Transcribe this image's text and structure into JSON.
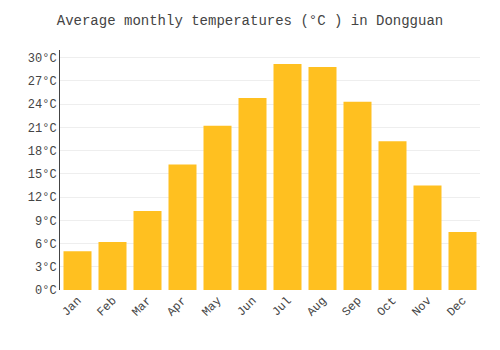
{
  "chart_data": {
    "type": "bar",
    "title": "Average monthly temperatures (°C ) in Dongguan",
    "categories": [
      "Jan",
      "Feb",
      "Mar",
      "Apr",
      "May",
      "Jun",
      "Jul",
      "Aug",
      "Sep",
      "Oct",
      "Nov",
      "Dec"
    ],
    "values": [
      5,
      6.2,
      10.2,
      16.2,
      21.2,
      24.8,
      29.2,
      28.8,
      24.3,
      19.2,
      13.5,
      7.5
    ],
    "color": "#FFC020",
    "ylim": [
      0,
      31
    ],
    "yticks": [
      {
        "value": 0,
        "label": "0°C"
      },
      {
        "value": 3,
        "label": "3°C"
      },
      {
        "value": 6,
        "label": "6°C"
      },
      {
        "value": 9,
        "label": "9°C"
      },
      {
        "value": 12,
        "label": "12°C"
      },
      {
        "value": 15,
        "label": "15°C"
      },
      {
        "value": 18,
        "label": "18°C"
      },
      {
        "value": 21,
        "label": "21°C"
      },
      {
        "value": 24,
        "label": "24°C"
      },
      {
        "value": 27,
        "label": "27°C"
      },
      {
        "value": 30,
        "label": "30°C"
      }
    ],
    "grid": true
  }
}
